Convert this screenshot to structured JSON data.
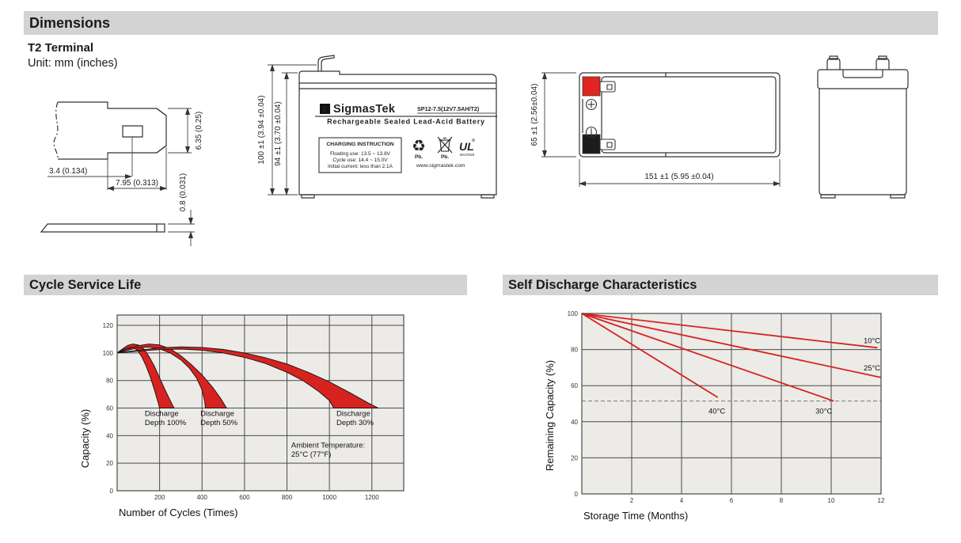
{
  "sections": {
    "dimensions": "Dimensions",
    "terminal_type": "T2 Terminal",
    "unit_note": "Unit: mm (inches)",
    "cycle": "Cycle Service Life",
    "self_discharge": "Self Discharge Characteristics"
  },
  "colors": {
    "accent_red": "#d7231f",
    "section_bar_bg": "#d3d3d3",
    "plot_bg": "#ecebe8",
    "grid_line": "#4a4a4a",
    "terminal_red": "#e02420",
    "terminal_black": "#1c1c1c"
  },
  "icons": {
    "recycle_icon": "♻",
    "sigma_logo_glyph": "Σ"
  },
  "drawings": {
    "terminal": {
      "dim_hole_offset": "3.4 (0.134)",
      "dim_blade_width": "7.95 (0.313)",
      "dim_blade_height": "6.35 (0.25)",
      "dim_thickness": "0.8 (0.031)"
    },
    "front": {
      "dim_total_height": "100 ±1 (3.94 ±0.04)",
      "dim_body_height": "94 ±1 (3.70 ±0.04)",
      "label": {
        "brand": "SigmasTek",
        "model": "SP12-7.5(12V7.5AH/T2)",
        "subtitle": "Rechargeable Sealed Lead-Acid Battery",
        "charging_title": "CHARGING INSTRUCTION",
        "charging_lines": [
          "Floating use: 13.5 ~ 13.8V",
          "Cycle use: 14.4 ~ 15.0V",
          "Initial current: less than 2.1A"
        ],
        "pb_recycle": "Pb.",
        "pb_bin": "Pb.",
        "ul_mark": "UL",
        "ul_code": "MH47929",
        "website": "www.sigmastek.com"
      }
    },
    "top": {
      "dim_width": "65 ±1 (2.56±0.04)",
      "dim_length": "151 ±1 (5.95 ±0.04)"
    }
  },
  "chart_data": [
    {
      "type": "area",
      "title": "Cycle Service Life",
      "xlabel": "Number of Cycles (Times)",
      "ylabel": "Capacity (%)",
      "xlim": [
        0,
        1350
      ],
      "ylim": [
        0,
        127.5
      ],
      "xticks": [
        200,
        400,
        600,
        800,
        1000,
        1200
      ],
      "yticks": [
        0,
        20,
        40,
        60,
        80,
        100,
        120
      ],
      "grid": true,
      "legend_position": "none",
      "bands": [
        {
          "name": "Discharge Depth 100%",
          "color": "#d7231f",
          "top": [
            [
              0,
              100
            ],
            [
              25,
              103
            ],
            [
              50,
              105.5
            ],
            [
              75,
              106.5
            ],
            [
              100,
              105.8
            ],
            [
              125,
              103
            ],
            [
              150,
              97.5
            ],
            [
              175,
              90.5
            ],
            [
              200,
              82
            ],
            [
              225,
              73.5
            ],
            [
              250,
              65.5
            ],
            [
              268,
              60
            ]
          ],
          "bottom": [
            [
              0,
              100
            ],
            [
              25,
              102
            ],
            [
              50,
              103.8
            ],
            [
              75,
              104
            ],
            [
              95,
              102
            ],
            [
              115,
              97.5
            ],
            [
              135,
              91
            ],
            [
              155,
              83
            ],
            [
              175,
              73.5
            ],
            [
              192,
              64.5
            ],
            [
              200,
              60
            ]
          ]
        },
        {
          "name": "Discharge Depth 50%",
          "color": "#d7231f",
          "top": [
            [
              0,
              100
            ],
            [
              50,
              103
            ],
            [
              100,
              105.3
            ],
            [
              150,
              106.5
            ],
            [
              200,
              105.8
            ],
            [
              250,
              103
            ],
            [
              300,
              98
            ],
            [
              350,
              91.5
            ],
            [
              400,
              84
            ],
            [
              450,
              75
            ],
            [
              490,
              66.5
            ],
            [
              515,
              60
            ]
          ],
          "bottom": [
            [
              0,
              100
            ],
            [
              50,
              102
            ],
            [
              100,
              103.8
            ],
            [
              150,
              104.3
            ],
            [
              200,
              103
            ],
            [
              250,
              100
            ],
            [
              300,
              95
            ],
            [
              340,
              89
            ],
            [
              375,
              81.5
            ],
            [
              400,
              73
            ],
            [
              412,
              65
            ],
            [
              416,
              60
            ]
          ]
        },
        {
          "name": "Discharge Depth 30%",
          "color": "#d7231f",
          "top": [
            [
              0,
              100
            ],
            [
              100,
              102
            ],
            [
              200,
              103.7
            ],
            [
              300,
              104.4
            ],
            [
              400,
              104
            ],
            [
              500,
              102.5
            ],
            [
              600,
              100
            ],
            [
              700,
              96.5
            ],
            [
              800,
              92
            ],
            [
              900,
              86
            ],
            [
              1000,
              79
            ],
            [
              1100,
              70.8
            ],
            [
              1180,
              64
            ],
            [
              1230,
              60
            ]
          ],
          "bottom": [
            [
              0,
              100
            ],
            [
              100,
              101.3
            ],
            [
              200,
              102.4
            ],
            [
              300,
              102.8
            ],
            [
              400,
              102
            ],
            [
              500,
              100
            ],
            [
              600,
              96.8
            ],
            [
              700,
              92.3
            ],
            [
              800,
              86
            ],
            [
              880,
              79.5
            ],
            [
              950,
              72
            ],
            [
              1000,
              65.5
            ],
            [
              1020,
              60
            ]
          ]
        }
      ],
      "annotations": [
        {
          "text": "Discharge\nDepth 100%",
          "x": 130,
          "y": 59
        },
        {
          "text": "Discharge\nDepth 50%",
          "x": 392,
          "y": 59
        },
        {
          "text": "Discharge\nDepth 30%",
          "x": 1033,
          "y": 59
        },
        {
          "text": "Ambient Temperature:\n25°C (77°F)",
          "x": 820,
          "y": 36
        }
      ]
    },
    {
      "type": "line",
      "title": "Self Discharge Characteristics",
      "xlabel": "Storage Time (Months)",
      "ylabel": "Remaining Capacity (%)",
      "xlim": [
        0,
        12
      ],
      "ylim": [
        0,
        100
      ],
      "xticks": [
        2,
        4,
        6,
        8,
        10,
        12
      ],
      "yticks": [
        0,
        20,
        40,
        60,
        80,
        100
      ],
      "grid": true,
      "legend_position": "inline-labels",
      "dashed_line_y": 51.5,
      "series": [
        {
          "name": "10°C",
          "color": "#d7231f",
          "points": [
            [
              0,
              100
            ],
            [
              11.85,
              81
            ]
          ]
        },
        {
          "name": "25°C",
          "color": "#d7231f",
          "points": [
            [
              0,
              100
            ],
            [
              12,
              64.5
            ]
          ]
        },
        {
          "name": "30°C",
          "color": "#d7231f",
          "points": [
            [
              0,
              100
            ],
            [
              10.1,
              51.5
            ]
          ]
        },
        {
          "name": "40°C",
          "color": "#d7231f",
          "points": [
            [
              0,
              100
            ],
            [
              5.45,
              53.5
            ]
          ]
        }
      ],
      "annotations": [
        {
          "text": "10°C",
          "x": 11.3,
          "y": 87
        },
        {
          "text": "25°C",
          "x": 11.3,
          "y": 72
        },
        {
          "text": "30°C",
          "x": 9.37,
          "y": 48
        },
        {
          "text": "40°C",
          "x": 5.08,
          "y": 48
        }
      ]
    }
  ]
}
